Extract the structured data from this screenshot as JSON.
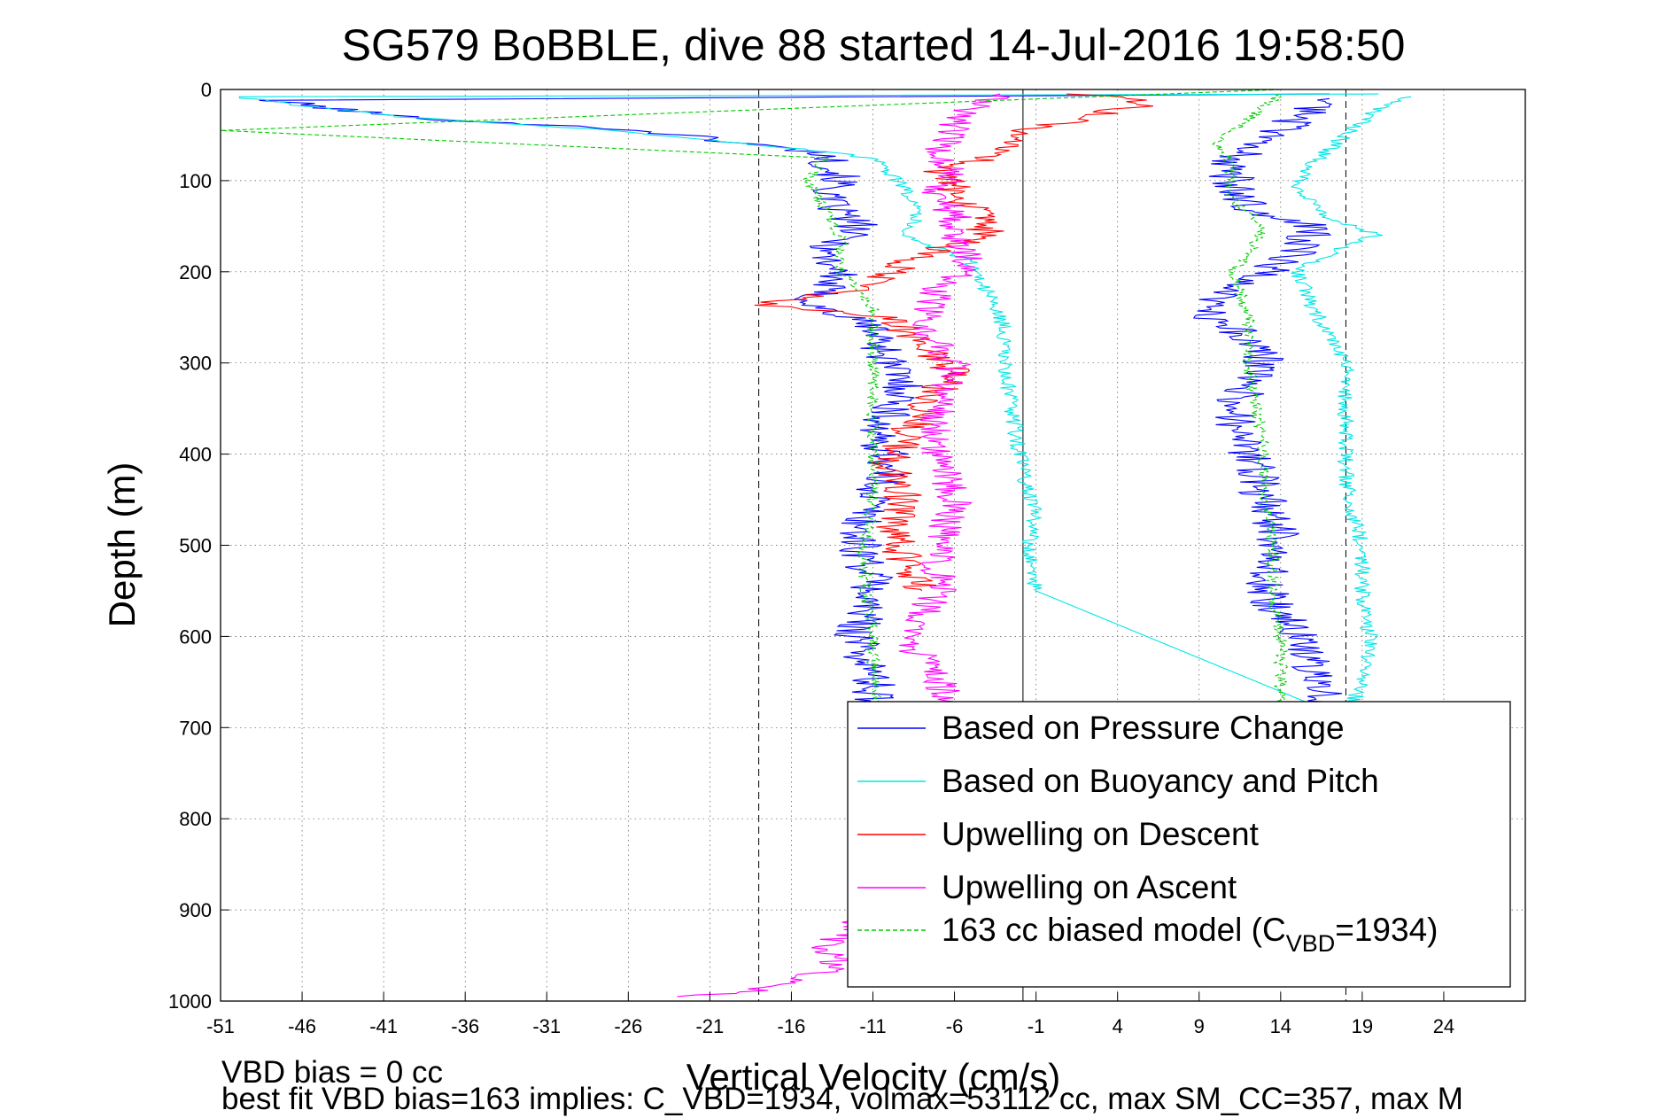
{
  "chart_data": {
    "type": "line",
    "title": "SG579 BoBBLE, dive 88 started 14-Jul-2016 19:58:50",
    "xlabel": "Vertical Velocity (cm/s)",
    "ylabel": "Depth (m)",
    "xlim": [
      -51,
      29
    ],
    "ylim": [
      0,
      1000
    ],
    "y_reversed": true,
    "grid": true,
    "xticks": [
      -51,
      -46,
      -41,
      -36,
      -31,
      -26,
      -21,
      -16,
      -11,
      -6,
      -1,
      4,
      9,
      14,
      19,
      24
    ],
    "yticks": [
      0,
      100,
      200,
      300,
      400,
      500,
      600,
      700,
      800,
      900,
      1000
    ],
    "reference_lines": {
      "solid_x": [
        -1.8
      ],
      "dashed_x": [
        -18.0,
        18.0
      ]
    },
    "legend": {
      "placement": "bottom-right",
      "entries": [
        {
          "label": "Based on Pressure Change",
          "color": "#0000ff",
          "dash": false
        },
        {
          "label": "Based on Buoyancy and Pitch",
          "color": "#00e5e5",
          "dash": false
        },
        {
          "label": "Upwelling on Descent",
          "color": "#ff0000",
          "dash": false
        },
        {
          "label": "Upwelling on Ascent",
          "color": "#ff00ff",
          "dash": false
        },
        {
          "label_main": "163 cc biased model (C",
          "label_sub": "VBD",
          "label_tail": "=1934)",
          "color": "#00cc00",
          "dash": true
        }
      ]
    },
    "series": [
      {
        "name": "Based on Pressure Change",
        "color": "#0000ff",
        "noise": 1.4,
        "points": [
          [
            17,
            5
          ],
          [
            -48,
            12
          ],
          [
            -40,
            30
          ],
          [
            -25,
            45
          ],
          [
            -14,
            70
          ],
          [
            -13,
            100
          ],
          [
            -14,
            120
          ],
          [
            -12,
            150
          ],
          [
            -14,
            180
          ],
          [
            -13,
            200
          ],
          [
            -15,
            235
          ],
          [
            -11,
            260
          ],
          [
            -10,
            300
          ],
          [
            -9,
            330
          ],
          [
            -11,
            380
          ],
          [
            -10,
            400
          ],
          [
            -11,
            450
          ],
          [
            -12,
            490
          ],
          [
            -11,
            540
          ],
          [
            -12,
            600
          ],
          [
            -11,
            650
          ],
          [
            -11,
            680
          ],
          [
            17,
            690
          ],
          [
            16,
            640
          ],
          [
            15,
            600
          ],
          [
            13,
            550
          ],
          [
            14,
            500
          ],
          [
            13,
            450
          ],
          [
            12,
            400
          ],
          [
            11,
            350
          ],
          [
            13,
            300
          ],
          [
            11,
            260
          ],
          [
            9,
            240
          ],
          [
            13,
            200
          ],
          [
            15,
            180
          ],
          [
            16,
            150
          ],
          [
            12,
            130
          ],
          [
            11,
            100
          ],
          [
            11,
            80
          ],
          [
            13,
            60
          ],
          [
            15,
            30
          ],
          [
            17,
            10
          ]
        ]
      },
      {
        "name": "Based on Buoyancy and Pitch",
        "color": "#00e5e5",
        "noise": 0.5,
        "points": [
          [
            20,
            5
          ],
          [
            -50,
            8
          ],
          [
            -45,
            20
          ],
          [
            -40,
            30
          ],
          [
            -27,
            45
          ],
          [
            -13,
            70
          ],
          [
            -10,
            80
          ],
          [
            -10,
            90
          ],
          [
            -9,
            110
          ],
          [
            -8,
            130
          ],
          [
            -9,
            160
          ],
          [
            -5,
            190
          ],
          [
            -4,
            220
          ],
          [
            -3,
            260
          ],
          [
            -3,
            300
          ],
          [
            -2.5,
            350
          ],
          [
            -2,
            400
          ],
          [
            -1.5,
            440
          ],
          [
            -1,
            470
          ],
          [
            -1.5,
            500
          ],
          [
            -1,
            550
          ],
          [
            18,
            690
          ],
          [
            19,
            650
          ],
          [
            19.5,
            600
          ],
          [
            19,
            560
          ],
          [
            19,
            500
          ],
          [
            18.5,
            470
          ],
          [
            18,
            430
          ],
          [
            18,
            400
          ],
          [
            18,
            380
          ],
          [
            18,
            330
          ],
          [
            18,
            300
          ],
          [
            17,
            270
          ],
          [
            16,
            240
          ],
          [
            15,
            200
          ],
          [
            18,
            170
          ],
          [
            20,
            160
          ],
          [
            17,
            140
          ],
          [
            15,
            110
          ],
          [
            16,
            80
          ],
          [
            18,
            50
          ],
          [
            20,
            20
          ],
          [
            22,
            8
          ]
        ]
      },
      {
        "name": "Upwelling on Descent",
        "color": "#ff0000",
        "noise": 1.2,
        "points": [
          [
            2,
            5
          ],
          [
            6,
            15
          ],
          [
            -3,
            50
          ],
          [
            -3,
            70
          ],
          [
            -7,
            90
          ],
          [
            -6,
            110
          ],
          [
            -5,
            130
          ],
          [
            -4,
            160
          ],
          [
            -8,
            180
          ],
          [
            -12,
            220
          ],
          [
            -18,
            235
          ],
          [
            -10,
            250
          ],
          [
            -8,
            280
          ],
          [
            -6,
            310
          ],
          [
            -7,
            330
          ],
          [
            -9,
            380
          ],
          [
            -10,
            410
          ],
          [
            -9,
            450
          ],
          [
            -10,
            480
          ],
          [
            -9,
            520
          ],
          [
            -8,
            550
          ]
        ]
      },
      {
        "name": "Upwelling on Ascent",
        "color": "#ff00ff",
        "noise": 1.1,
        "points": [
          [
            -3,
            5
          ],
          [
            -5,
            20
          ],
          [
            -6,
            40
          ],
          [
            -7,
            70
          ],
          [
            -6,
            90
          ],
          [
            -7,
            110
          ],
          [
            -6,
            140
          ],
          [
            -6,
            160
          ],
          [
            -5,
            190
          ],
          [
            -7,
            220
          ],
          [
            -8,
            260
          ],
          [
            -6,
            300
          ],
          [
            -7,
            350
          ],
          [
            -7,
            400
          ],
          [
            -6,
            450
          ],
          [
            -7,
            500
          ],
          [
            -7,
            550
          ],
          [
            -9,
            600
          ],
          [
            -7,
            650
          ],
          [
            -6,
            680
          ],
          [
            -12,
            920
          ],
          [
            -14,
            940
          ],
          [
            -13,
            960
          ],
          [
            -16,
            980
          ],
          [
            -19,
            990
          ],
          [
            -23,
            995
          ]
        ]
      },
      {
        "name": "163 cc biased model (C_VBD=1934)",
        "color": "#00cc00",
        "dash": true,
        "noise": 0.4,
        "points": [
          [
            14,
            0
          ],
          [
            -51,
            45
          ],
          [
            -14,
            75
          ],
          [
            -15,
            100
          ],
          [
            -14,
            130
          ],
          [
            -13,
            160
          ],
          [
            -13,
            200
          ],
          [
            -11,
            240
          ],
          [
            -11,
            280
          ],
          [
            -11,
            330
          ],
          [
            -11,
            400
          ],
          [
            -11,
            450
          ],
          [
            -11.5,
            500
          ],
          [
            -11.5,
            550
          ],
          [
            -11,
            600
          ],
          [
            -11,
            650
          ],
          [
            -10.5,
            680
          ],
          [
            14,
            690
          ],
          [
            14,
            640
          ],
          [
            14,
            600
          ],
          [
            13.5,
            550
          ],
          [
            13.5,
            500
          ],
          [
            13,
            450
          ],
          [
            13,
            400
          ],
          [
            12.5,
            350
          ],
          [
            12,
            300
          ],
          [
            12,
            250
          ],
          [
            11,
            200
          ],
          [
            12,
            180
          ],
          [
            13,
            150
          ],
          [
            11,
            120
          ],
          [
            11,
            100
          ],
          [
            11,
            80
          ],
          [
            10,
            60
          ],
          [
            14,
            5
          ]
        ]
      }
    ]
  },
  "footer": {
    "line1": "VBD bias = 0 cc",
    "line2": "best fit VBD bias=163 implies: C_VBD=1934, volmax=53112 cc, max SM_CC=357, max M"
  }
}
